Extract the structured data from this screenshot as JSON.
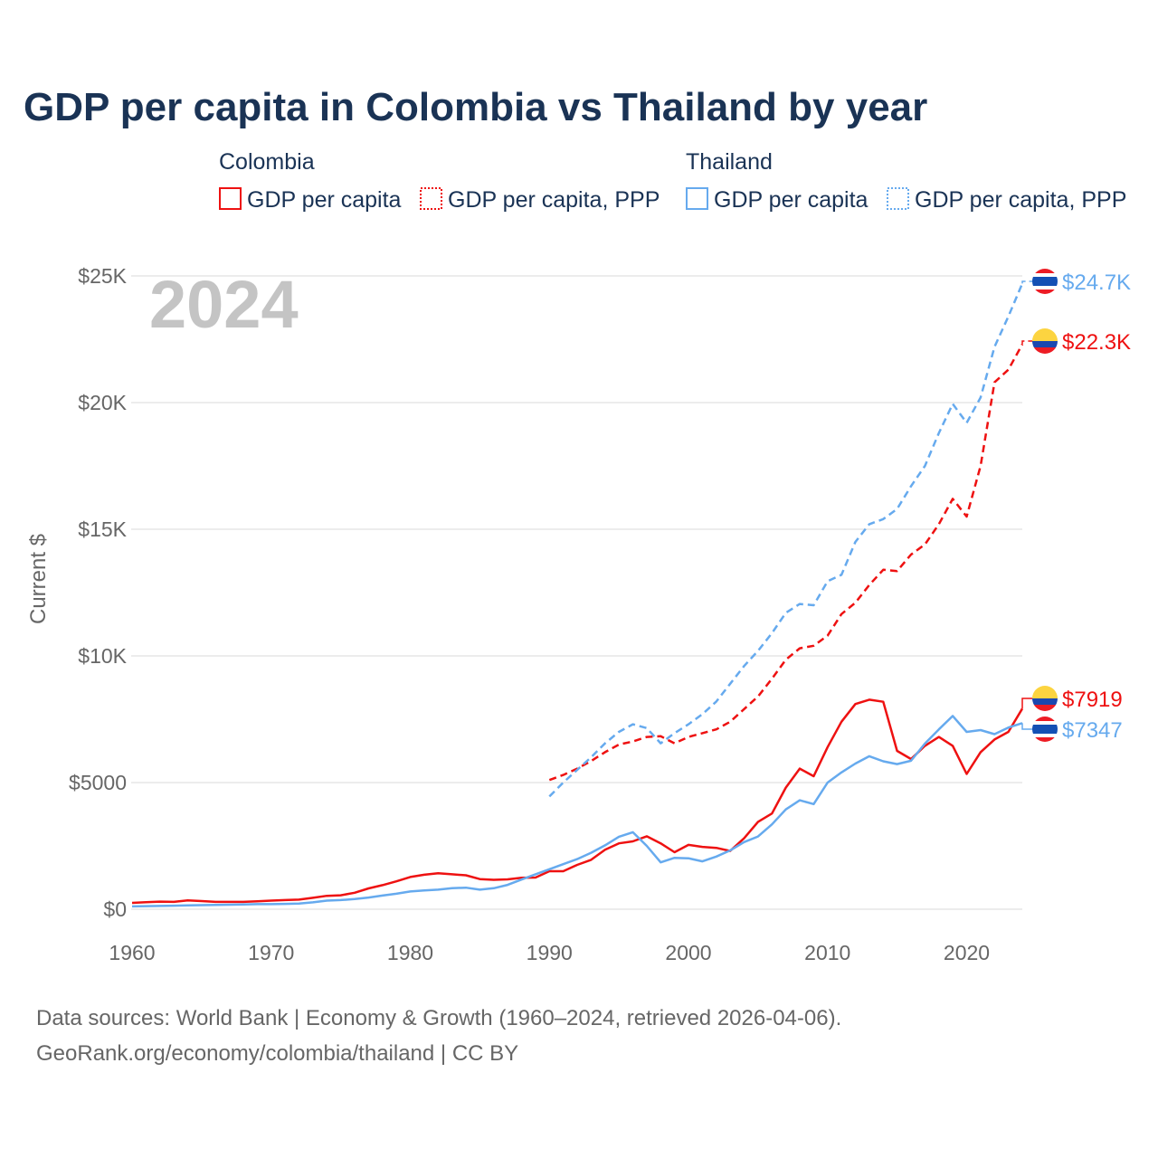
{
  "chart_data": {
    "type": "line",
    "title": "GDP per capita in Colombia vs Thailand by year",
    "ylabel": "Current $",
    "xlabel": "",
    "xlim": [
      1960,
      2024
    ],
    "ylim": [
      0,
      25000
    ],
    "x_ticks": [
      1960,
      1970,
      1980,
      1990,
      2000,
      2010,
      2020
    ],
    "x_tick_labels": [
      "1960",
      "1970",
      "1980",
      "1990",
      "2000",
      "2010",
      "2020"
    ],
    "y_ticks": [
      0,
      5000,
      10000,
      15000,
      20000,
      25000
    ],
    "y_tick_labels": [
      "$0",
      "$5000",
      "$10K",
      "$15K",
      "$20K",
      "$25K"
    ],
    "grid": true,
    "year_watermark": "2024",
    "legend": {
      "placement": "top",
      "groups": [
        {
          "name": "Colombia",
          "items": [
            "GDP per capita",
            "GDP per capita, PPP"
          ]
        },
        {
          "name": "Thailand",
          "items": [
            "GDP per capita",
            "GDP per capita, PPP"
          ]
        }
      ]
    },
    "series": [
      {
        "name": "Colombia GDP per capita",
        "country": "Colombia",
        "style": "solid",
        "color": "#ee1111",
        "start": 1960,
        "end_label": "$7919",
        "values": [
          250,
          280,
          300,
          290,
          350,
          320,
          290,
          290,
          290,
          310,
          340,
          360,
          380,
          450,
          530,
          550,
          650,
          820,
          950,
          1100,
          1270,
          1360,
          1420,
          1380,
          1340,
          1190,
          1160,
          1180,
          1240,
          1250,
          1500,
          1500,
          1750,
          1950,
          2350,
          2600,
          2680,
          2880,
          2600,
          2250,
          2540,
          2460,
          2420,
          2300,
          2800,
          3450,
          3780,
          4800,
          5550,
          5250,
          6400,
          7400,
          8100,
          8270,
          8190,
          6250,
          5930,
          6450,
          6800,
          6450,
          5340,
          6200,
          6700,
          7000,
          7919
        ]
      },
      {
        "name": "Colombia GDP per capita, PPP",
        "country": "Colombia",
        "style": "dashed",
        "color": "#ee1111",
        "start": 1990,
        "end_label": "$22.3K",
        "values": [
          5100,
          5300,
          5550,
          5850,
          6200,
          6500,
          6620,
          6800,
          6830,
          6550,
          6800,
          6950,
          7100,
          7400,
          7900,
          8400,
          9100,
          9850,
          10300,
          10400,
          10800,
          11650,
          12100,
          12800,
          13400,
          13350,
          14000,
          14400,
          15200,
          16200,
          15500,
          17500,
          20800,
          21300,
          22300
        ]
      },
      {
        "name": "Thailand GDP per capita",
        "country": "Thailand",
        "style": "solid",
        "color": "#66aaee",
        "start": 1960,
        "end_label": "$7347",
        "values": [
          110,
          120,
          130,
          140,
          150,
          160,
          170,
          180,
          190,
          200,
          200,
          210,
          220,
          270,
          340,
          360,
          400,
          460,
          540,
          610,
          700,
          740,
          770,
          830,
          850,
          770,
          830,
          960,
          1170,
          1380,
          1580,
          1780,
          1980,
          2230,
          2520,
          2860,
          3040,
          2500,
          1850,
          2030,
          2010,
          1890,
          2080,
          2320,
          2650,
          2870,
          3350,
          3940,
          4300,
          4150,
          5000,
          5400,
          5750,
          6040,
          5840,
          5730,
          5860,
          6540,
          7100,
          7630,
          7000,
          7070,
          6910,
          7170,
          7347
        ]
      },
      {
        "name": "Thailand GDP per capita, PPP",
        "country": "Thailand",
        "style": "dashed",
        "color": "#66aaee",
        "start": 1990,
        "end_label": "$24.7K",
        "values": [
          4450,
          5000,
          5500,
          6000,
          6550,
          7000,
          7300,
          7150,
          6550,
          6950,
          7300,
          7700,
          8200,
          8900,
          9600,
          10200,
          10900,
          11700,
          12050,
          12000,
          12950,
          13200,
          14500,
          15200,
          15400,
          15800,
          16700,
          17500,
          18800,
          19950,
          19200,
          20200,
          22200,
          23400,
          24700
        ]
      }
    ]
  },
  "footer": {
    "line1": "Data sources: World Bank | Economy & Growth (1960–2024, retrieved 2026-04-06).",
    "line2": "GeoRank.org/economy/colombia/thailand | CC BY"
  }
}
